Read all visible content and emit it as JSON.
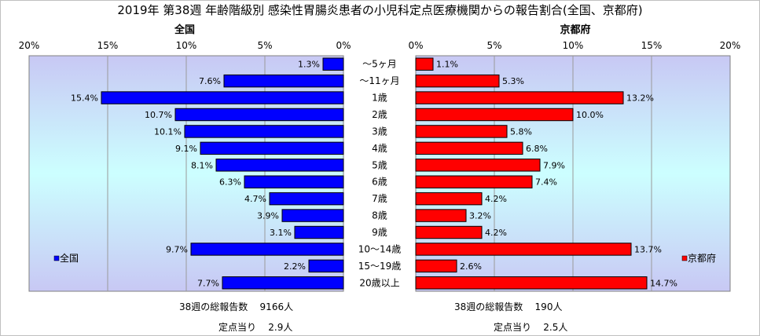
{
  "chart_data": {
    "type": "bar",
    "orientation": "horizontal",
    "title": "2019年 第38週 年齢階級別 感染性胃腸炎患者の小児科定点医療機関からの報告割合(全国、京都府)",
    "categories": [
      "～5ヶ月",
      "～11ヶ月",
      "1歳",
      "2歳",
      "3歳",
      "4歳",
      "5歳",
      "6歳",
      "7歳",
      "8歳",
      "9歳",
      "10～14歳",
      "15～19歳",
      "20歳以上"
    ],
    "xlim": [
      0,
      20
    ],
    "xticks": [
      "0%",
      "5%",
      "10%",
      "15%",
      "20%"
    ],
    "panels": [
      {
        "title": "全国",
        "direction": "left",
        "color": "#0000ff",
        "legend": "全国",
        "legend_position": "bottom-left",
        "values": [
          1.3,
          7.6,
          15.4,
          10.7,
          10.1,
          9.1,
          8.1,
          6.3,
          4.7,
          3.9,
          3.1,
          9.7,
          2.2,
          7.7
        ],
        "footer": {
          "total_label": "38週の総報告数",
          "total_value": "9166人",
          "per_site_label": "定点当り",
          "per_site_value": "2.9人"
        }
      },
      {
        "title": "京都府",
        "direction": "right",
        "color": "#ff0000",
        "legend": "京都府",
        "legend_position": "bottom-right",
        "values": [
          1.1,
          5.3,
          13.2,
          10.0,
          5.8,
          6.8,
          7.9,
          7.4,
          4.2,
          3.2,
          4.2,
          13.7,
          2.6,
          14.7
        ],
        "footer": {
          "total_label": "38週の総報告数",
          "total_value": "190人",
          "per_site_label": "定点当り",
          "per_site_value": "2.5人"
        }
      }
    ]
  }
}
